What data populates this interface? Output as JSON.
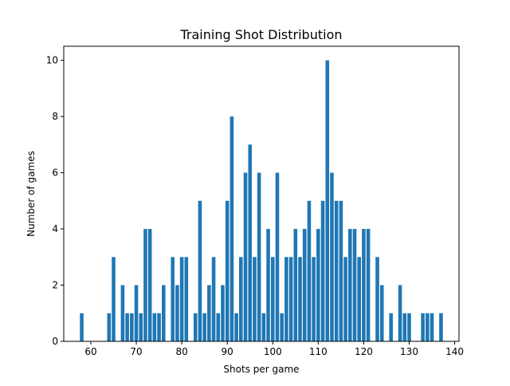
{
  "chart_data": {
    "type": "bar",
    "title": "Training Shot Distribution",
    "xlabel": "Shots per game",
    "ylabel": "Number of games",
    "xlim": [
      54.05,
      140.95
    ],
    "ylim": [
      0,
      10.5
    ],
    "xticks": [
      60,
      70,
      80,
      90,
      100,
      110,
      120,
      130,
      140
    ],
    "yticks": [
      0,
      2,
      4,
      6,
      8,
      10
    ],
    "bar_color": "#1f77b4",
    "grid": false,
    "legend": "none",
    "x": [
      58,
      64,
      65,
      67,
      68,
      69,
      70,
      71,
      72,
      73,
      74,
      75,
      76,
      78,
      79,
      80,
      81,
      83,
      84,
      85,
      86,
      87,
      88,
      89,
      90,
      91,
      92,
      93,
      94,
      95,
      96,
      97,
      98,
      99,
      100,
      101,
      102,
      103,
      104,
      105,
      106,
      107,
      108,
      109,
      110,
      111,
      112,
      113,
      114,
      115,
      116,
      117,
      118,
      119,
      120,
      121,
      123,
      124,
      126,
      128,
      129,
      130,
      133,
      134,
      135,
      137
    ],
    "values": [
      1,
      1,
      3,
      2,
      1,
      1,
      2,
      1,
      4,
      4,
      1,
      1,
      2,
      3,
      2,
      3,
      3,
      1,
      5,
      1,
      2,
      3,
      1,
      2,
      5,
      8,
      1,
      3,
      6,
      7,
      3,
      6,
      1,
      4,
      3,
      6,
      1,
      3,
      3,
      4,
      3,
      4,
      5,
      3,
      4,
      5,
      10,
      6,
      5,
      5,
      3,
      4,
      4,
      3,
      4,
      4,
      3,
      2,
      1,
      2,
      1,
      1,
      1,
      1,
      1,
      1
    ]
  }
}
